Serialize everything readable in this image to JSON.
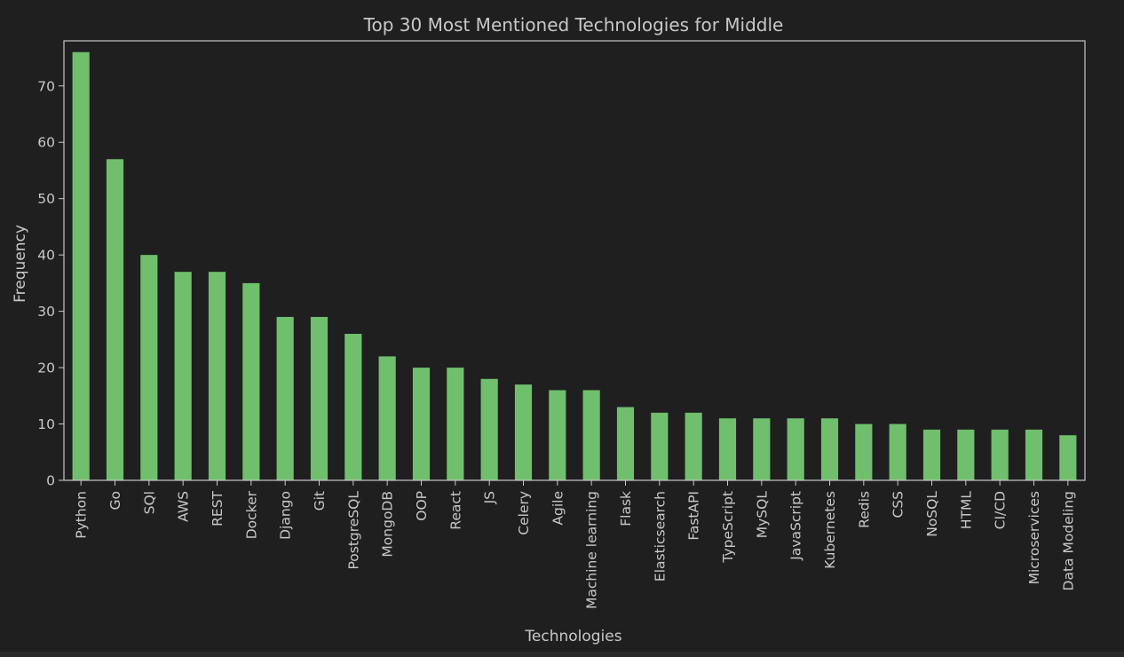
{
  "chart_data": {
    "type": "bar",
    "title": "Top 30 Most Mentioned Technologies for Middle",
    "xlabel": "Technologies",
    "ylabel": "Frequency",
    "ylim": [
      0,
      78
    ],
    "yticks": [
      0,
      10,
      20,
      30,
      40,
      50,
      60,
      70
    ],
    "bar_color": "#70bf6d",
    "background_color": "#1f1f1f",
    "text_color": "#c8c8c8",
    "grid": false,
    "legend": "none",
    "categories": [
      "Python",
      "Go",
      "SQl",
      "AWS",
      "REST",
      "Docker",
      "Django",
      "Git",
      "PostgreSQL",
      "MongoDB",
      "OOP",
      "React",
      "JS",
      "Celery",
      "Agile",
      "Machine learning",
      "Flask",
      "Elasticsearch",
      "FastAPI",
      "TypeScript",
      "MySQL",
      "JavaScript",
      "Kubernetes",
      "Redis",
      "CSS",
      "NoSQL",
      "HTML",
      "CI/CD",
      "Microservices",
      "Data Modeling"
    ],
    "values": [
      76,
      57,
      40,
      37,
      37,
      35,
      29,
      29,
      26,
      22,
      20,
      20,
      18,
      17,
      16,
      16,
      13,
      12,
      12,
      11,
      11,
      11,
      11,
      10,
      10,
      9,
      9,
      9,
      9,
      8
    ]
  }
}
